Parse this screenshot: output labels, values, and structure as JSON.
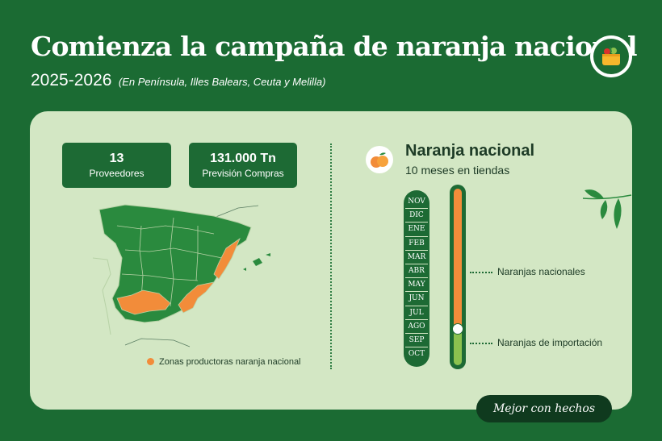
{
  "header": {
    "title": "Comienza la campaña de naranja nacional",
    "years": "2025-2026",
    "note": "(En Península, Illes Balears, Ceuta y Melilla)"
  },
  "logo": {
    "icon": "basket-icon"
  },
  "stats": [
    {
      "value": "13",
      "label": "Proveedores"
    },
    {
      "value": "131.000 Tn",
      "label": "Previsión Compras"
    }
  ],
  "map": {
    "legend": "Zonas productoras naranja nacional",
    "colors": {
      "regions": "#2a8a3e",
      "producing": "#f28c3a",
      "outline": "#b7d2a6"
    }
  },
  "calendar": {
    "title": "Naranja nacional",
    "subtitle": "10 meses en tiendas",
    "months": [
      "NOV",
      "DIC",
      "ENE",
      "FEB",
      "MAR",
      "ABR",
      "MAY",
      "JUN",
      "JUL",
      "AGO",
      "SEP",
      "OCT"
    ],
    "national_label": "Naranjas nacionales",
    "import_label": "Naranjas de importación",
    "colors": {
      "national": "#f28c3a",
      "import": "#8cc24f"
    }
  },
  "footer": {
    "cta": "Mejor con hechos"
  }
}
